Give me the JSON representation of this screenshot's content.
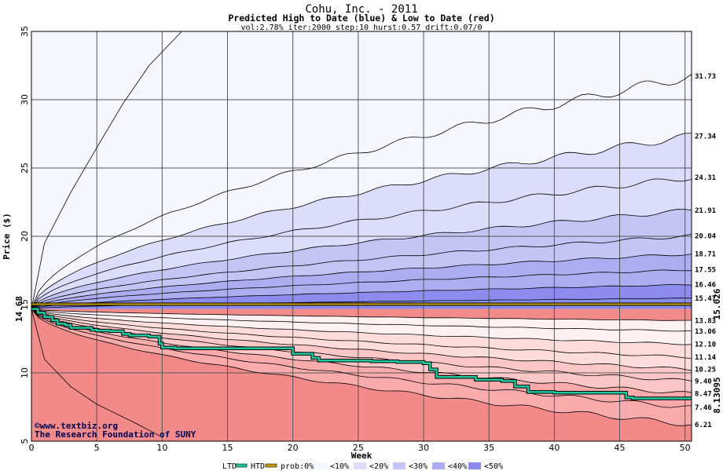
{
  "chart_data": {
    "type": "area",
    "title": "Cohu, Inc. - 2011",
    "subtitle": "Predicted High to Date (blue) &  Low to Date (red)",
    "params": "vol:2.78% iter:2000 step:10 hurst:0.57 drift:0.07/0",
    "xlabel": "Week",
    "ylabel": "Price ($)",
    "xlim": [
      0,
      50.5
    ],
    "ylim": [
      5,
      35
    ],
    "xticks": [
      0,
      5,
      10,
      15,
      20,
      25,
      30,
      35,
      40,
      45,
      50
    ],
    "yticks": [
      5,
      10,
      15,
      20,
      25,
      30,
      35
    ],
    "grid": true,
    "start_price": 14.68,
    "start_label": "14.68",
    "upper_bands": [
      {
        "end": 31.73,
        "label": "31.73"
      },
      {
        "end": 27.34,
        "label": "27.34"
      },
      {
        "end": 24.31,
        "label": "24.31"
      },
      {
        "end": 21.91,
        "label": "21.91"
      },
      {
        "end": 20.04,
        "label": "20.04"
      },
      {
        "end": 18.71,
        "label": "18.71"
      },
      {
        "end": 17.55,
        "label": "17.55"
      },
      {
        "end": 16.46,
        "label": "16.46"
      },
      {
        "end": 15.47,
        "label": "15.47"
      }
    ],
    "lower_bands": [
      {
        "end": 13.83,
        "label": "13.83"
      },
      {
        "end": 13.06,
        "label": "13.06"
      },
      {
        "end": 12.1,
        "label": "12.10"
      },
      {
        "end": 11.14,
        "label": "11.14"
      },
      {
        "end": 10.25,
        "label": "10.25"
      },
      {
        "end": 9.4,
        "label": "9.40"
      },
      {
        "end": 8.47,
        "label": "8.47"
      },
      {
        "end": 7.46,
        "label": "7.46"
      },
      {
        "end": 6.21,
        "label": "6.21"
      }
    ],
    "outer_upper_path": {
      "x": [
        0,
        1,
        3,
        5,
        7,
        9,
        11.5
      ],
      "y": [
        14.68,
        19.5,
        23.2,
        26.5,
        29.7,
        32.5,
        35
      ]
    },
    "outer_lower_path": {
      "x": [
        0,
        1,
        3,
        5,
        8,
        10
      ],
      "y": [
        14.68,
        11.0,
        9.0,
        7.7,
        6.3,
        5.3
      ]
    },
    "htd": {
      "name": "HTD",
      "value": 15.026,
      "label": "15.026",
      "color": "#c8a000"
    },
    "ltd": {
      "name": "LTD",
      "label": "8.13095",
      "color": "#20c8a0",
      "x": [
        0,
        0.5,
        1,
        1.6,
        2,
        2.6,
        3,
        4,
        4.6,
        5,
        6,
        7,
        7.5,
        9,
        9.8,
        10,
        11,
        13,
        15,
        18,
        20,
        21,
        21.5,
        22,
        24,
        26,
        28,
        30,
        30.5,
        31,
        34,
        36,
        37,
        38,
        40,
        44,
        45,
        45.5,
        46,
        48,
        50.5
      ],
      "y": [
        14.68,
        14.4,
        14.1,
        13.85,
        13.6,
        13.5,
        13.3,
        13.3,
        13.15,
        13.1,
        13.05,
        12.85,
        12.75,
        12.65,
        12.15,
        11.85,
        11.8,
        11.8,
        11.8,
        11.8,
        11.4,
        11.4,
        11.1,
        10.9,
        10.9,
        10.85,
        10.8,
        10.7,
        10.25,
        9.7,
        9.5,
        9.4,
        9.0,
        8.6,
        8.55,
        8.55,
        8.55,
        8.2,
        8.13,
        8.13,
        8.13
      ]
    },
    "legend": {
      "items": [
        "LTD",
        "HTD",
        "prob:0%",
        "<10%",
        "<20%",
        "<30%",
        "<40%",
        "<50%"
      ],
      "placement": "bottom"
    },
    "band_colors": {
      "blue": [
        "#f6f6ff",
        "#dcdcfb",
        "#c4c4f5",
        "#acacf1",
        "#8c8cee"
      ],
      "red": [
        "#fff1f1",
        "#fddcdc",
        "#fbc6c6",
        "#f9aaaa",
        "#f38a8a"
      ]
    }
  },
  "credit": {
    "line1": "©www.textbiz.org",
    "line2": "The Research Foundation of SUNY"
  }
}
